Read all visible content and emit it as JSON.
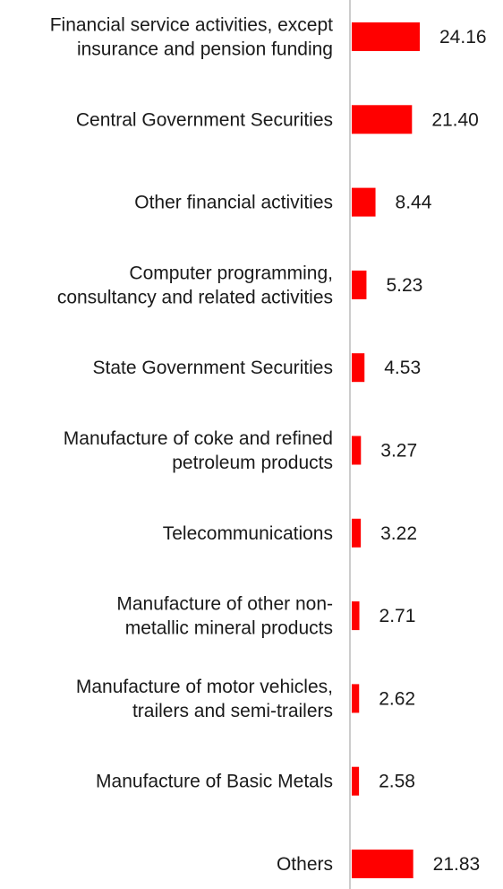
{
  "chart_data": {
    "type": "bar",
    "orientation": "horizontal",
    "categories": [
      [
        "Financial service activities, except",
        "insurance and pension funding"
      ],
      [
        "Central Government Securities"
      ],
      [
        "Other financial activities"
      ],
      [
        "Computer programming,",
        "consultancy and related activities"
      ],
      [
        "State Government Securities"
      ],
      [
        "Manufacture of coke and refined",
        "petroleum products"
      ],
      [
        "Telecommunications"
      ],
      [
        "Manufacture of other non-",
        "metallic mineral products"
      ],
      [
        "Manufacture of motor vehicles,",
        "trailers and semi-trailers"
      ],
      [
        "Manufacture of Basic Metals"
      ],
      [
        "Others"
      ]
    ],
    "values": [
      24.16,
      21.4,
      8.44,
      5.23,
      4.53,
      3.27,
      3.22,
      2.71,
      2.62,
      2.58,
      21.83
    ],
    "value_labels": [
      "24.16",
      "21.40",
      "8.44",
      "5.23",
      "4.53",
      "3.27",
      "3.22",
      "2.71",
      "2.62",
      "2.58",
      "21.83"
    ],
    "bar_color": "#ff0000",
    "axis_color": "#cccccc",
    "xlim": [
      0,
      24.16
    ],
    "grid": false,
    "legend": "none"
  }
}
